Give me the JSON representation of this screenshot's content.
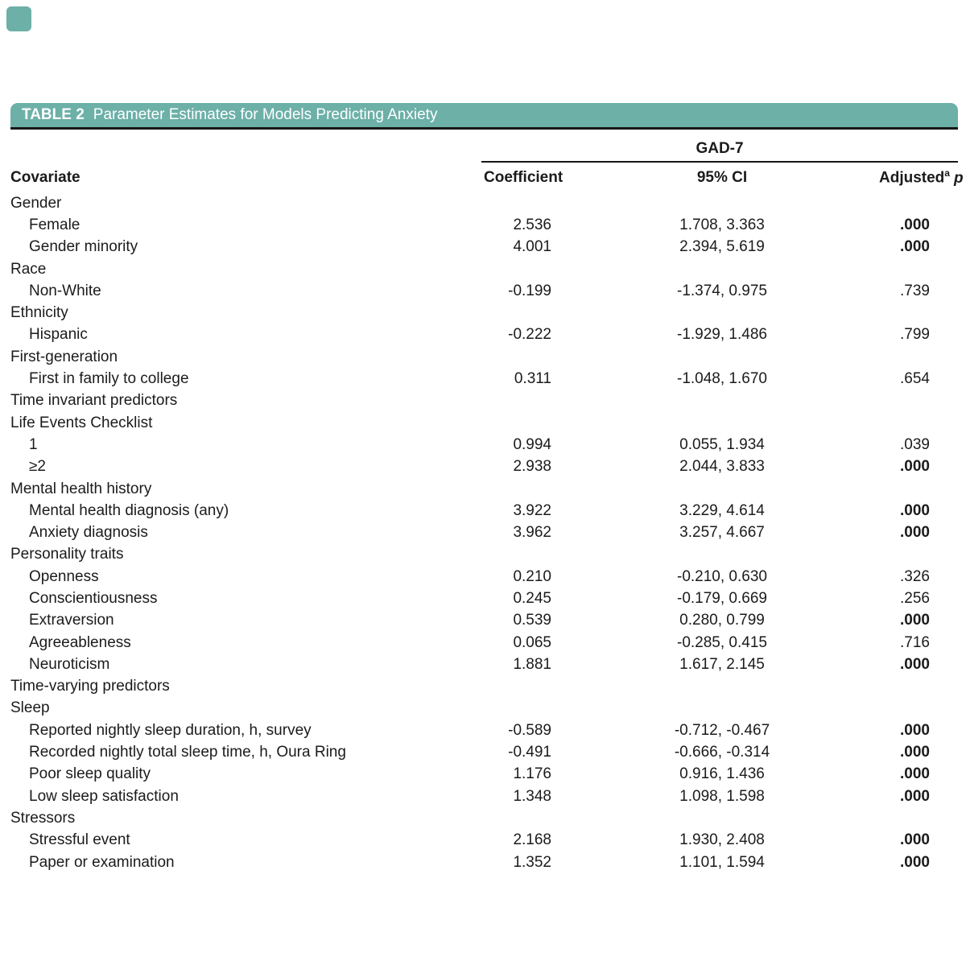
{
  "page": {
    "accent_color": "#6cb0a8",
    "rule_color": "#161616",
    "text_color": "#1b1b1b"
  },
  "table": {
    "label": "TABLE 2",
    "title": "Parameter Estimates for Models Predicting Anxiety",
    "span_header": "GAD-7",
    "columns": {
      "covariate": "Covariate",
      "coefficient": "Coefficient",
      "ci": "95% CI",
      "adjusted": "Adjusted",
      "adjusted_sup": "a",
      "p": "p"
    },
    "rows": [
      {
        "label": "Gender",
        "indent": false,
        "coef": "",
        "ci": "",
        "p": "",
        "sig": false
      },
      {
        "label": "Female",
        "indent": true,
        "coef": "2.536",
        "ci": "1.708, 3.363",
        "p": ".000",
        "sig": true
      },
      {
        "label": "Gender minority",
        "indent": true,
        "coef": "4.001",
        "ci": "2.394, 5.619",
        "p": ".000",
        "sig": true
      },
      {
        "label": "Race",
        "indent": false,
        "coef": "",
        "ci": "",
        "p": "",
        "sig": false
      },
      {
        "label": "Non-White",
        "indent": true,
        "coef": "-0.199",
        "ci": "-1.374, 0.975",
        "p": ".739",
        "sig": false
      },
      {
        "label": "Ethnicity",
        "indent": false,
        "coef": "",
        "ci": "",
        "p": "",
        "sig": false
      },
      {
        "label": "Hispanic",
        "indent": true,
        "coef": "-0.222",
        "ci": "-1.929, 1.486",
        "p": ".799",
        "sig": false
      },
      {
        "label": "First-generation",
        "indent": false,
        "coef": "",
        "ci": "",
        "p": "",
        "sig": false
      },
      {
        "label": "First in family to college",
        "indent": true,
        "coef": "0.311",
        "ci": "-1.048, 1.670",
        "p": ".654",
        "sig": false
      },
      {
        "label": "Time invariant predictors",
        "indent": false,
        "coef": "",
        "ci": "",
        "p": "",
        "sig": false
      },
      {
        "label": "Life Events Checklist",
        "indent": false,
        "coef": "",
        "ci": "",
        "p": "",
        "sig": false
      },
      {
        "label": "1",
        "indent": true,
        "coef": "0.994",
        "ci": "0.055, 1.934",
        "p": ".039",
        "sig": false
      },
      {
        "label": "≥2",
        "indent": true,
        "coef": "2.938",
        "ci": "2.044, 3.833",
        "p": ".000",
        "sig": true
      },
      {
        "label": "Mental health history",
        "indent": false,
        "coef": "",
        "ci": "",
        "p": "",
        "sig": false
      },
      {
        "label": "Mental health diagnosis (any)",
        "indent": true,
        "coef": "3.922",
        "ci": "3.229, 4.614",
        "p": ".000",
        "sig": true
      },
      {
        "label": "Anxiety diagnosis",
        "indent": true,
        "coef": "3.962",
        "ci": "3.257, 4.667",
        "p": ".000",
        "sig": true
      },
      {
        "label": "Personality traits",
        "indent": false,
        "coef": "",
        "ci": "",
        "p": "",
        "sig": false
      },
      {
        "label": "Openness",
        "indent": true,
        "coef": "0.210",
        "ci": "-0.210, 0.630",
        "p": ".326",
        "sig": false
      },
      {
        "label": "Conscientiousness",
        "indent": true,
        "coef": "0.245",
        "ci": "-0.179, 0.669",
        "p": ".256",
        "sig": false
      },
      {
        "label": "Extraversion",
        "indent": true,
        "coef": "0.539",
        "ci": "0.280, 0.799",
        "p": ".000",
        "sig": true
      },
      {
        "label": "Agreeableness",
        "indent": true,
        "coef": "0.065",
        "ci": "-0.285, 0.415",
        "p": ".716",
        "sig": false
      },
      {
        "label": "Neuroticism",
        "indent": true,
        "coef": "1.881",
        "ci": "1.617, 2.145",
        "p": ".000",
        "sig": true
      },
      {
        "label": "Time-varying predictors",
        "indent": false,
        "coef": "",
        "ci": "",
        "p": "",
        "sig": false
      },
      {
        "label": "Sleep",
        "indent": false,
        "coef": "",
        "ci": "",
        "p": "",
        "sig": false
      },
      {
        "label": "Reported nightly sleep duration, h, survey",
        "indent": true,
        "coef": "-0.589",
        "ci": "-0.712, -0.467",
        "p": ".000",
        "sig": true
      },
      {
        "label": "Recorded nightly total sleep time, h, Oura Ring",
        "indent": true,
        "coef": "-0.491",
        "ci": "-0.666, -0.314",
        "p": ".000",
        "sig": true
      },
      {
        "label": "Poor sleep quality",
        "indent": true,
        "coef": "1.176",
        "ci": "0.916, 1.436",
        "p": ".000",
        "sig": true
      },
      {
        "label": "Low sleep satisfaction",
        "indent": true,
        "coef": "1.348",
        "ci": "1.098, 1.598",
        "p": ".000",
        "sig": true
      },
      {
        "label": "Stressors",
        "indent": false,
        "coef": "",
        "ci": "",
        "p": "",
        "sig": false
      },
      {
        "label": "Stressful event",
        "indent": true,
        "coef": "2.168",
        "ci": "1.930, 2.408",
        "p": ".000",
        "sig": true
      },
      {
        "label": "Paper or examination",
        "indent": true,
        "coef": "1.352",
        "ci": "1.101, 1.594",
        "p": ".000",
        "sig": true
      }
    ]
  }
}
